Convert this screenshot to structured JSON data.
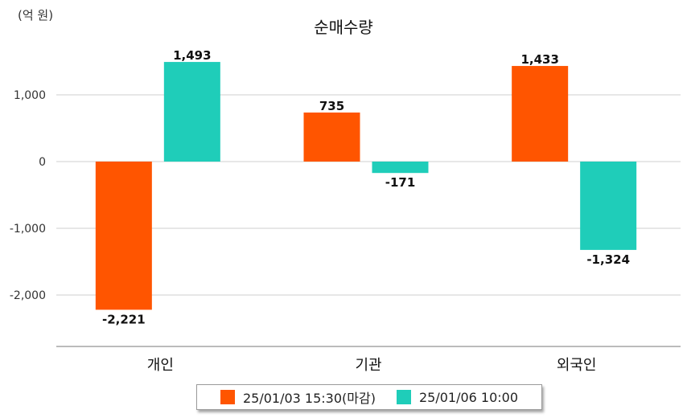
{
  "unit_label": "(억 원)",
  "chart_data": {
    "type": "bar",
    "title": "순매수량",
    "categories": [
      "개인",
      "기관",
      "외국인"
    ],
    "series": [
      {
        "name": "25/01/03 15:30(마감)",
        "color": "#FF5500",
        "values": [
          -2221,
          735,
          1433
        ],
        "labels": [
          "-2,221",
          "735",
          "1,433"
        ]
      },
      {
        "name": "25/01/06 10:00",
        "color": "#1FCDB9",
        "values": [
          1493,
          -171,
          -1324
        ],
        "labels": [
          "1,493",
          "-171",
          "-1,324"
        ]
      }
    ],
    "yticks": [
      1000,
      0,
      -1000,
      -2000
    ],
    "ytick_labels": [
      "1,000",
      "0",
      "-1,000",
      "-2,000"
    ],
    "ylim": [
      -2750,
      1750
    ],
    "grid": true,
    "legend_position": "bottom"
  }
}
